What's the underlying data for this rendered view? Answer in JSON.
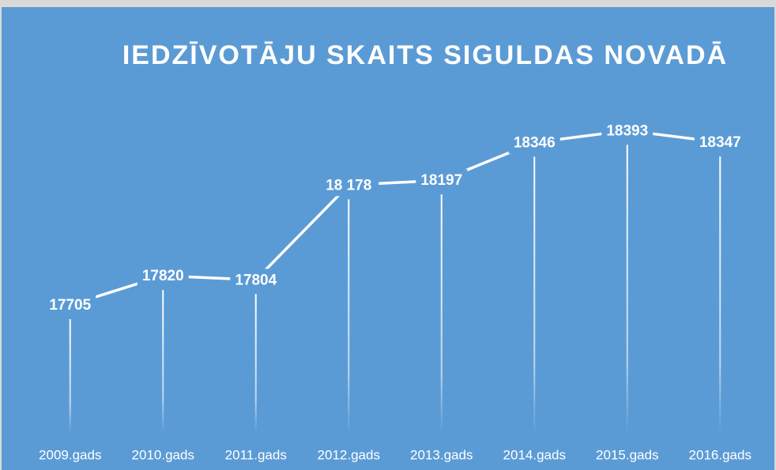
{
  "chart_data": {
    "type": "line",
    "title": "IEDZĪVOTĀJU SKAITS SIGULDAS NOVADĀ",
    "categories": [
      "2009.gads",
      "2010.gads",
      "2011.gads",
      "2012.gads",
      "2013.gads",
      "2014.gads",
      "2015.gads",
      "2016.gads"
    ],
    "values": [
      17705,
      17820,
      17804,
      18178,
      18197,
      18346,
      18393,
      18347
    ],
    "value_labels": [
      "17705",
      "17820",
      "17804",
      "18 178",
      "18197",
      "18346",
      "18393",
      "18347"
    ],
    "color": "#ffffff",
    "ylim": [
      17200,
      18500
    ]
  }
}
